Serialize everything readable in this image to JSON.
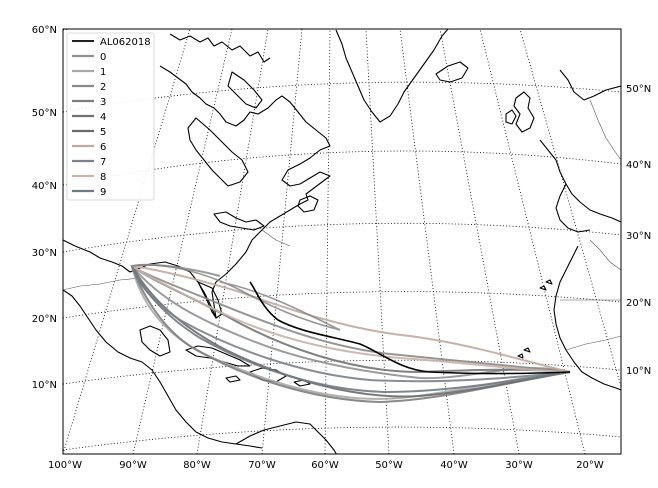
{
  "map": {
    "lat_labels_left": [
      "60°N",
      "50°N",
      "40°N",
      "30°N",
      "20°N",
      "10°N"
    ],
    "lat_labels_right": [
      "50°N",
      "40°N",
      "30°N",
      "20°N",
      "10°N"
    ],
    "lon_labels_bottom": [
      "100°W",
      "90°W",
      "80°W",
      "70°W",
      "60°W",
      "50°W",
      "40°W",
      "30°W",
      "20°W"
    ],
    "colors": {
      "observed": "#000000",
      "ensemble": [
        "#909090",
        "#a8a8a8",
        "#8a8a8a",
        "#7d7d7d",
        "#737373",
        "#6b6b6b",
        "#c0aaa0",
        "#7c8288",
        "#c8b4aa",
        "#6f7a84"
      ]
    }
  },
  "legend": {
    "entries": [
      "AL062018",
      "0",
      "1",
      "2",
      "3",
      "4",
      "5",
      "6",
      "7",
      "8",
      "9"
    ]
  }
}
